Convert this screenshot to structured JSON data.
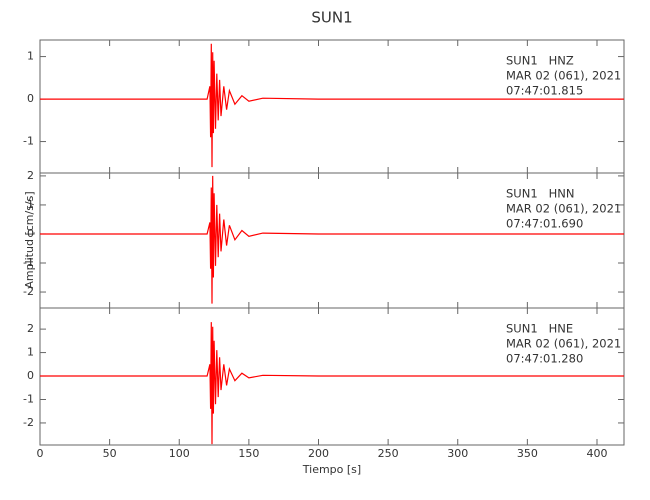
{
  "chart_data": [
    {
      "type": "line",
      "title": "SUN1",
      "color": "#ff0000",
      "annotations": [
        "SUN1   HNZ",
        "MAR 02 (061), 2021",
        "07:47:01.815"
      ],
      "x": [
        0,
        60,
        120,
        122,
        122.5,
        123,
        123.5,
        124,
        124.5,
        125,
        126,
        127,
        128,
        129,
        130,
        132,
        134,
        136,
        140,
        145,
        150,
        160,
        200,
        300,
        419.4
      ],
      "values": [
        0,
        0,
        0,
        0.3,
        -0.9,
        1.3,
        -1.6,
        1.1,
        -0.8,
        0.9,
        -0.7,
        0.6,
        -0.5,
        0.45,
        -0.4,
        0.3,
        -0.25,
        0.2,
        -0.12,
        0.08,
        -0.05,
        0.02,
        0,
        0,
        0
      ],
      "xlim": [
        0,
        419.4
      ],
      "xticks": [
        0,
        50,
        100,
        150,
        200,
        250,
        300,
        350,
        400
      ],
      "ylim": [
        -1.74,
        1.39
      ],
      "yticks": [
        -1,
        0,
        1
      ]
    },
    {
      "type": "line",
      "ylabel": "Amplitud [cm/s/s]",
      "color": "#ff0000",
      "annotations": [
        "SUN1   HNN",
        "MAR 02 (061), 2021",
        "07:47:01.690"
      ],
      "x": [
        0,
        60,
        120,
        122,
        122.5,
        123,
        123.5,
        124,
        124.5,
        125,
        126,
        127,
        128,
        129,
        130,
        132,
        134,
        136,
        140,
        145,
        150,
        160,
        200,
        300,
        419.4
      ],
      "values": [
        0,
        0,
        0,
        0.4,
        -1.2,
        1.6,
        -2.4,
        2.0,
        -1.5,
        1.4,
        -1.1,
        1.0,
        -0.8,
        0.7,
        -0.6,
        0.5,
        -0.4,
        0.3,
        -0.2,
        0.12,
        -0.08,
        0.03,
        0,
        0,
        0
      ],
      "xlim": [
        0,
        419.4
      ],
      "xticks": [
        0,
        50,
        100,
        150,
        200,
        250,
        300,
        350,
        400
      ],
      "ylim": [
        -2.55,
        2.1
      ],
      "yticks": [
        -2,
        -1,
        0,
        1,
        2
      ]
    },
    {
      "type": "line",
      "xlabel": "Tiempo [s]",
      "color": "#ff0000",
      "annotations": [
        "SUN1   HNE",
        "MAR 02 (061), 2021",
        "07:47:01.280"
      ],
      "x": [
        0,
        60,
        120,
        122,
        122.5,
        123,
        123.5,
        124,
        124.5,
        125,
        126,
        127,
        128,
        129,
        130,
        132,
        134,
        136,
        140,
        145,
        150,
        160,
        200,
        300,
        419.4
      ],
      "values": [
        0,
        0,
        0,
        0.5,
        -1.4,
        2.3,
        -2.9,
        2.1,
        -1.6,
        1.5,
        -1.2,
        1.1,
        -0.9,
        0.8,
        -0.6,
        0.5,
        -0.4,
        0.3,
        -0.2,
        0.12,
        -0.08,
        0.03,
        0,
        0,
        0
      ],
      "xlim": [
        0,
        419.4
      ],
      "xticks": [
        0,
        50,
        100,
        150,
        200,
        250,
        300,
        350,
        400
      ],
      "ylim": [
        -2.94,
        2.9
      ],
      "yticks": [
        -2,
        -1,
        0,
        1,
        2
      ]
    }
  ]
}
